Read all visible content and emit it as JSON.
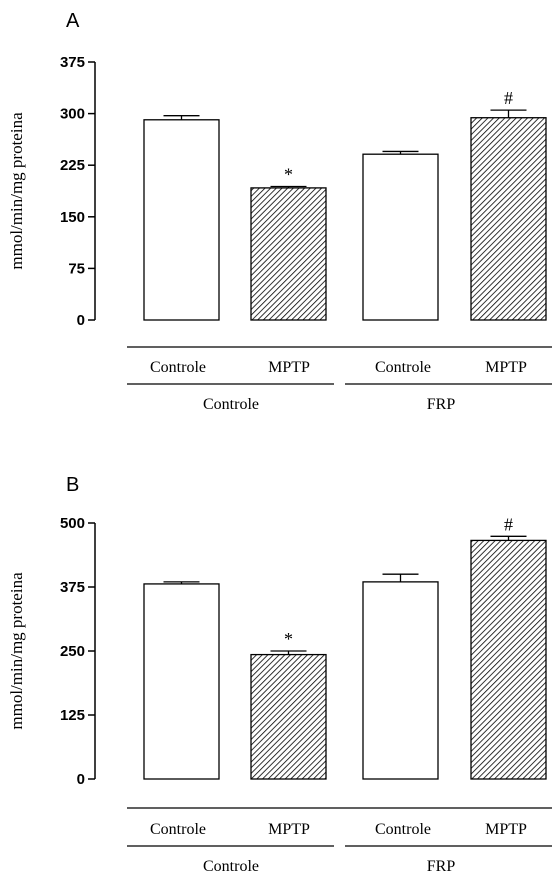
{
  "chart_data": [
    {
      "type": "bar",
      "panel": "A",
      "ylabel": "mmol/min/mg proteina",
      "ylim": [
        0,
        375
      ],
      "yticks": [
        0,
        75,
        150,
        225,
        300,
        375
      ],
      "categories": [
        "Controle",
        "MPTP",
        "Controle",
        "MPTP"
      ],
      "groups": [
        {
          "label": "Controle",
          "span": [
            0,
            1
          ]
        },
        {
          "label": "FRP",
          "span": [
            2,
            3
          ]
        }
      ],
      "values": [
        291,
        192,
        241,
        294
      ],
      "errors": [
        6,
        2,
        4,
        11
      ],
      "fills": [
        "white",
        "hatched",
        "white",
        "hatched"
      ],
      "annotations": [
        "",
        "*",
        "",
        "#"
      ]
    },
    {
      "type": "bar",
      "panel": "B",
      "ylabel": "mmol/min/mg proteina",
      "ylim": [
        0,
        500
      ],
      "yticks": [
        0,
        125,
        250,
        375,
        500
      ],
      "categories": [
        "Controle",
        "MPTP",
        "Controle",
        "MPTP"
      ],
      "groups": [
        {
          "label": "Controle",
          "span": [
            0,
            1
          ]
        },
        {
          "label": "FRP",
          "span": [
            2,
            3
          ]
        }
      ],
      "values": [
        381,
        243,
        385,
        466
      ],
      "errors": [
        4,
        7,
        15,
        8
      ],
      "fills": [
        "white",
        "hatched",
        "white",
        "hatched"
      ],
      "annotations": [
        "",
        "*",
        "",
        "#"
      ]
    }
  ]
}
